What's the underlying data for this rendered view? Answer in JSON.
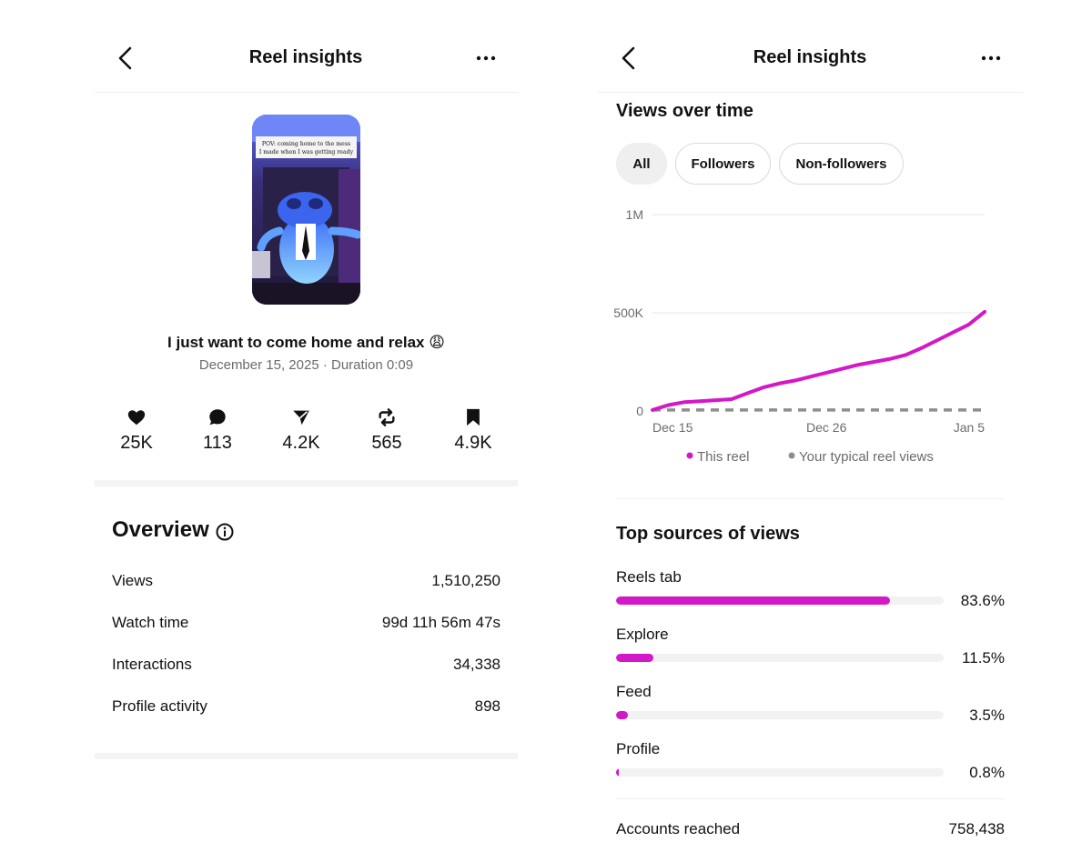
{
  "left": {
    "header": {
      "title": "Reel insights"
    },
    "thumbnail": {
      "caption_line1": "POV: coming home to the mess",
      "caption_line2": "I made when I was getting ready"
    },
    "reel": {
      "title": "I just want to come home and relax 😩",
      "meta": "December 15, 2025 · Duration 0:09"
    },
    "stats": [
      {
        "icon": "heart-icon",
        "value": "25K"
      },
      {
        "icon": "comment-icon",
        "value": "113"
      },
      {
        "icon": "share-icon",
        "value": "4.2K"
      },
      {
        "icon": "repost-icon",
        "value": "565"
      },
      {
        "icon": "bookmark-icon",
        "value": "4.9K"
      }
    ],
    "overview": {
      "title": "Overview",
      "rows": [
        {
          "label": "Views",
          "value": "1,510,250"
        },
        {
          "label": "Watch time",
          "value": "99d 11h 56m 47s"
        },
        {
          "label": "Interactions",
          "value": "34,338"
        },
        {
          "label": "Profile activity",
          "value": "898"
        }
      ]
    }
  },
  "right": {
    "header": {
      "title": "Reel insights"
    },
    "views_over_time": {
      "title": "Views over time",
      "chips": [
        {
          "label": "All",
          "active": true
        },
        {
          "label": "Followers",
          "active": false
        },
        {
          "label": "Non-followers",
          "active": false
        }
      ]
    },
    "top_sources": {
      "title": "Top sources of views",
      "items": [
        {
          "label": "Reels tab",
          "pct_text": "83.6%",
          "fraction": 0.836
        },
        {
          "label": "Explore",
          "pct_text": "11.5%",
          "fraction": 0.115
        },
        {
          "label": "Feed",
          "pct_text": "3.5%",
          "fraction": 0.035
        },
        {
          "label": "Profile",
          "pct_text": "0.8%",
          "fraction": 0.008
        }
      ]
    },
    "accounts_reached": {
      "label": "Accounts reached",
      "value": "758,438"
    }
  },
  "colors": {
    "accent": "#d417c7",
    "typical": "#8e8e8e",
    "divider": "#efefef"
  },
  "chart_data": {
    "type": "line",
    "title": "",
    "x": [
      "Dec 15",
      "Dec 16",
      "Dec 17",
      "Dec 18",
      "Dec 19",
      "Dec 20",
      "Dec 21",
      "Dec 22",
      "Dec 23",
      "Dec 24",
      "Dec 25",
      "Dec 26",
      "Dec 27",
      "Dec 28",
      "Dec 29",
      "Dec 30",
      "Dec 31",
      "Jan 1",
      "Jan 2",
      "Jan 3",
      "Jan 4",
      "Jan 5"
    ],
    "x_ticks": [
      "Dec 15",
      "Dec 26",
      "Jan 5"
    ],
    "y_ticks": [
      {
        "value": 0,
        "label": "0"
      },
      {
        "value": 500000,
        "label": "500K"
      },
      {
        "value": 1000000,
        "label": "1M"
      }
    ],
    "ylim": [
      0,
      1000000
    ],
    "grid": true,
    "legend_position": "bottom",
    "series": [
      {
        "name": "This reel",
        "style": "solid",
        "values": [
          5000,
          30000,
          45000,
          50000,
          55000,
          60000,
          90000,
          120000,
          140000,
          155000,
          175000,
          195000,
          215000,
          235000,
          250000,
          265000,
          285000,
          320000,
          360000,
          400000,
          440000,
          505000
        ]
      },
      {
        "name": "Your typical reel views",
        "style": "dashed",
        "values": [
          5000,
          5000,
          5000,
          5000,
          5000,
          5000,
          5000,
          5000,
          5000,
          5000,
          5000,
          5000,
          5000,
          5000,
          5000,
          5000,
          5000,
          5000,
          5000,
          5000,
          5000,
          5000
        ]
      }
    ]
  }
}
